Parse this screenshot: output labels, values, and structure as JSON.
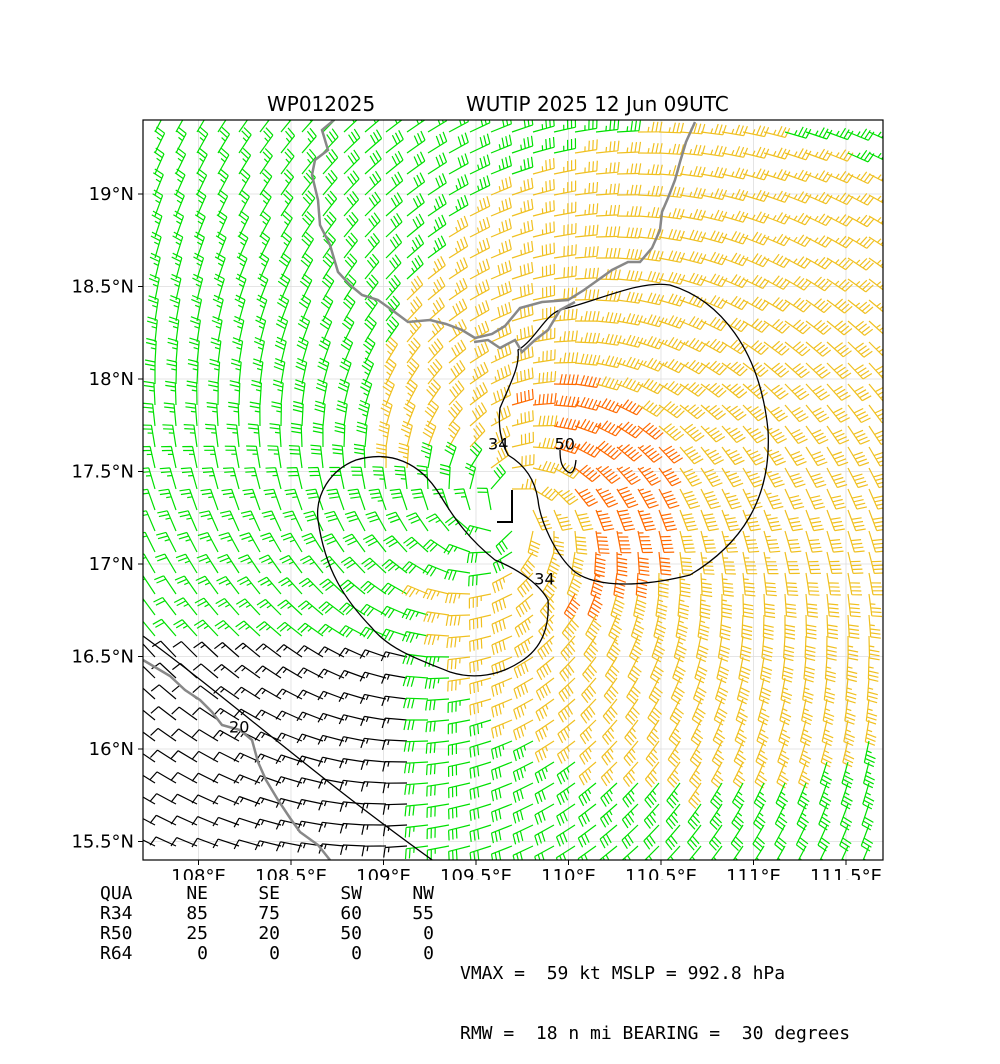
{
  "title": {
    "left": "WP012025",
    "right": "WUTIP 2025 12 Jun 09UTC"
  },
  "chart_data": {
    "type": "wind-barb map",
    "storm_id": "WP012025",
    "storm_name": "WUTIP",
    "lon_range": [
      107.7,
      111.7
    ],
    "lat_range": [
      15.4,
      19.4
    ],
    "xticks": [
      108.0,
      108.5,
      109.0,
      109.5,
      110.0,
      110.5,
      111.0,
      111.5
    ],
    "xtick_labels": [
      "108°E",
      "108.5°E",
      "109°E",
      "109.5°E",
      "110°E",
      "110.5°E",
      "111°E",
      "111.5°E"
    ],
    "yticks": [
      15.5,
      16.0,
      16.5,
      17.0,
      17.5,
      18.0,
      18.5,
      19.0
    ],
    "ytick_labels": [
      "15.5°N",
      "16°N",
      "16.5°N",
      "17°N",
      "17.5°N",
      "18°N",
      "18.5°N",
      "19°N"
    ],
    "grid": true,
    "center": {
      "lon": 109.65,
      "lat": 17.28
    },
    "vmax_kt": 59,
    "rmw_nmi": 18,
    "bearing_deg": 30,
    "wind_color_bins": [
      {
        "min_kt": 0,
        "max_kt": 20,
        "color": "#000000"
      },
      {
        "min_kt": 20,
        "max_kt": 34,
        "color": "#00e000"
      },
      {
        "min_kt": 34,
        "max_kt": 50,
        "color": "#f0c020"
      },
      {
        "min_kt": 50,
        "max_kt": 64,
        "color": "#ff6a00"
      }
    ],
    "contour_labels": [
      {
        "text": "34",
        "lon": 109.62,
        "lat": 17.62
      },
      {
        "text": "34",
        "lon": 109.87,
        "lat": 16.89
      },
      {
        "text": "50",
        "lon": 109.98,
        "lat": 17.62
      },
      {
        "text": "20",
        "lon": 108.22,
        "lat": 16.09
      }
    ],
    "wind_radii": {
      "headers": [
        "QUA",
        "NE",
        "SE",
        "SW",
        "NW"
      ],
      "rows": [
        {
          "label": "R34",
          "values": [
            "85",
            "75",
            "60",
            "55"
          ]
        },
        {
          "label": "R50",
          "values": [
            "25",
            "20",
            "50",
            "0"
          ]
        },
        {
          "label": "R64",
          "values": [
            "0",
            "0",
            "0",
            "0"
          ]
        }
      ]
    }
  },
  "stats": {
    "line1": "VMAX =  59 kt MSLP = 992.8 hPa",
    "line2": "RMW =  18 n mi BEARING =  30 degrees"
  }
}
